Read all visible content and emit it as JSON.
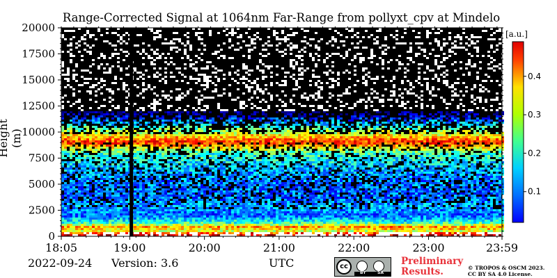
{
  "chart_data": {
    "type": "heatmap",
    "title": "Range-Corrected Signal at 1064nm Far-Range from pollyxt_cpv at Mindelo",
    "ylabel": "Height (m)",
    "xlabel": "UTC",
    "x_ticks": [
      "18:05",
      "19:00",
      "20:00",
      "21:00",
      "22:00",
      "23:00",
      "23:59"
    ],
    "y_ticks": [
      0,
      2500,
      5000,
      7500,
      10000,
      12500,
      15000,
      17500,
      20000
    ],
    "ylim": [
      0,
      20000
    ],
    "xlim": [
      "18:05",
      "23:59"
    ],
    "colorbar": {
      "label": "[a.u.]",
      "ticks": [
        0.1,
        0.2,
        0.3,
        0.4
      ],
      "range": [
        0.02,
        0.49
      ],
      "colormap": "jet"
    },
    "data_gap": {
      "utc": "19:01",
      "description": ""
    },
    "profile_summary": [
      {
        "height_m": 200,
        "signal": 0.45
      },
      {
        "height_m": 500,
        "signal": 0.3
      },
      {
        "height_m": 900,
        "signal": 0.36
      },
      {
        "height_m": 1300,
        "signal": 0.22
      },
      {
        "height_m": 2000,
        "signal": 0.12
      },
      {
        "height_m": 2800,
        "signal": 0.16
      },
      {
        "height_m": 4000,
        "signal": 0.12
      },
      {
        "height_m": 6000,
        "signal": 0.15
      },
      {
        "height_m": 8000,
        "signal": 0.22
      },
      {
        "height_m": 9000,
        "signal": 0.42
      },
      {
        "height_m": 12000,
        "signal": 0.0
      },
      {
        "height_m": 20000,
        "signal": 0.0
      }
    ]
  },
  "footer": {
    "date": "2022-09-24",
    "version": "Version: 3.6",
    "x_unit": "UTC",
    "license_badge_by": "BY",
    "license_badge_sa": "SA",
    "preliminary_line1": "Preliminary",
    "preliminary_line2": "Results.",
    "copyright_line1": "© TROPOS & OSCM 2023.",
    "copyright_line2": "CC BY SA 4.0 License."
  }
}
